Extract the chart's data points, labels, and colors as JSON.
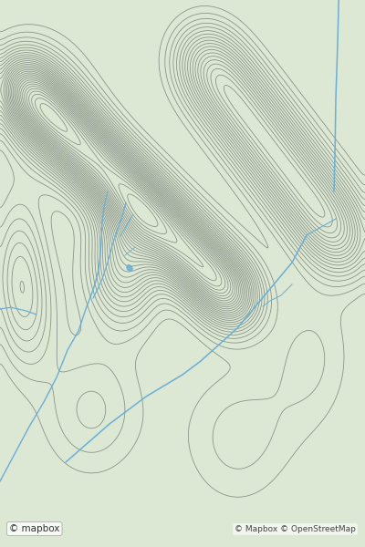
{
  "bg_color": "#dce8d4",
  "contour_color": "#707870",
  "contour_alpha": 0.75,
  "contour_lw": 0.6,
  "river_color": "#6aaed6",
  "fig_width": 4.0,
  "fig_height": 6.0,
  "dpi": 100,
  "watermark_text": "© mapbox",
  "watermark_text2": "© Mapbox © OpenStreetMap",
  "shadow_color": "#b8c8b0",
  "shadow_alpha": 0.55
}
